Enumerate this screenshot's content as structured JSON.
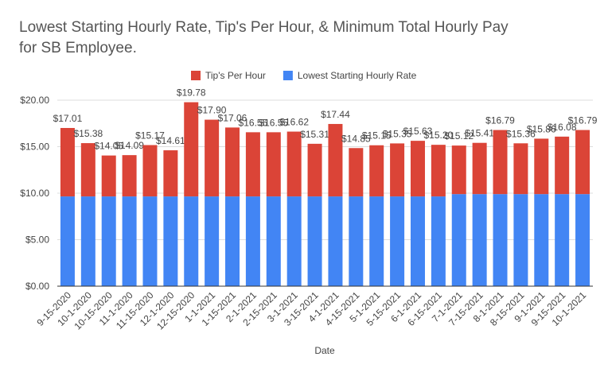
{
  "chart_data": {
    "type": "stacked_bar",
    "title": "Lowest Starting Hourly Rate, Tip's Per Hour, & Minimum Total Hourly Pay for SB Employee.",
    "x_label": "Date",
    "categories": [
      "9-15-2020",
      "10-1-2020",
      "10-15-2020",
      "11-1-2020",
      "11-15-2020",
      "12-1-2020",
      "12-15-2020",
      "1-1-2021",
      "1-15-2021",
      "2-1-2021",
      "2-15-2021",
      "3-1-2021",
      "3-15-2021",
      "4-1-2021",
      "4-15-2021",
      "5-1-2021",
      "5-15-2021",
      "6-1-2021",
      "6-15-2021",
      "7-1-2021",
      "7-15-2021",
      "8-1-2021",
      "8-15-2021",
      "9-1-2021",
      "9-15-2021",
      "10-1-2021"
    ],
    "series": [
      {
        "name": "Lowest Starting Hourly Rate",
        "color": "#4285f4",
        "values": [
          9.65,
          9.65,
          9.65,
          9.65,
          9.65,
          9.65,
          9.65,
          9.65,
          9.65,
          9.65,
          9.65,
          9.65,
          9.65,
          9.65,
          9.65,
          9.65,
          9.65,
          9.65,
          9.65,
          9.9,
          9.9,
          9.9,
          9.9,
          9.9,
          9.9,
          9.9
        ]
      },
      {
        "name": "Tip's Per Hour",
        "color": "#db4437",
        "values": [
          7.36,
          5.73,
          4.4,
          4.44,
          5.52,
          4.96,
          10.13,
          8.25,
          7.41,
          6.9,
          6.9,
          6.97,
          5.66,
          7.79,
          5.2,
          5.5,
          5.7,
          5.98,
          5.55,
          5.22,
          5.51,
          6.89,
          5.46,
          5.96,
          6.18,
          6.89
        ]
      }
    ],
    "total_labels": [
      "$17.01",
      "$15.38",
      "$14.05",
      "$14.09",
      "$15.17",
      "$14.61",
      "$19.78",
      "$17.90",
      "$17.06",
      "$16.55",
      "$16.55",
      "$16.62",
      "$15.31",
      "$17.44",
      "$14.85",
      "$15.15",
      "$15.35",
      "$15.63",
      "$15.20",
      "$15.12",
      "$15.41",
      "$16.79",
      "$15.36",
      "$15.86",
      "$16.08",
      "$16.79"
    ],
    "ylim": [
      0,
      20
    ],
    "yticks": [
      {
        "value": 0,
        "label": "$0.00"
      },
      {
        "value": 5,
        "label": "$5.00"
      },
      {
        "value": 10,
        "label": "$10.00"
      },
      {
        "value": 15,
        "label": "$15.00"
      },
      {
        "value": 20,
        "label": "$20.00"
      }
    ],
    "grid": true
  }
}
